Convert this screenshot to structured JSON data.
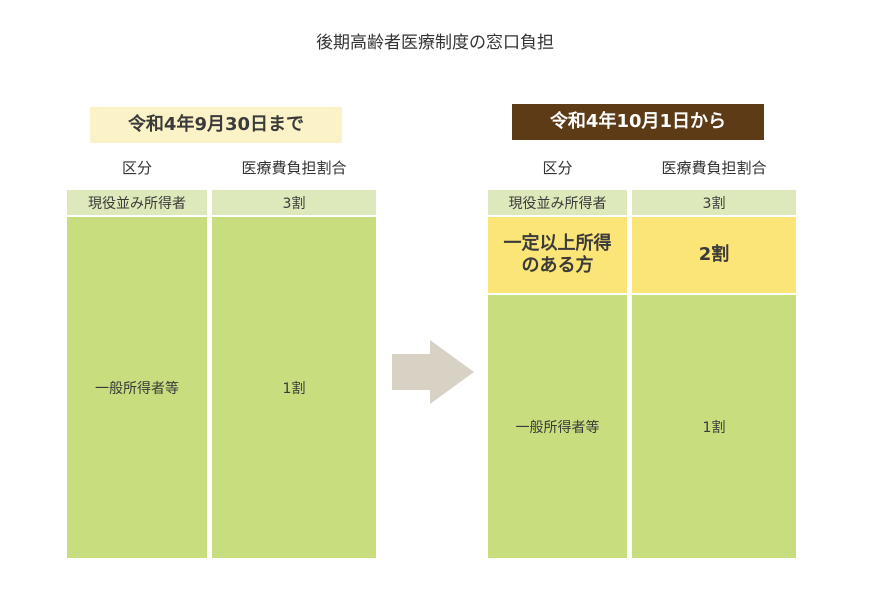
{
  "title": "後期高齢者医療制度の窓口負担",
  "before": {
    "period": "令和4年9月30日まで",
    "header_category": "区分",
    "header_ratio": "医療費負担割合",
    "rows": [
      {
        "category": "現役並み所得者",
        "ratio": "3割"
      },
      {
        "category": "一般所得者等",
        "ratio": "1割"
      }
    ]
  },
  "after": {
    "period": "令和4年10月1日から",
    "header_category": "区分",
    "header_ratio": "医療費負担割合",
    "rows": [
      {
        "category": "現役並み所得者",
        "ratio": "3割"
      },
      {
        "category_line1": "一定以上所得",
        "category_line2": "のある方",
        "ratio": "2割"
      },
      {
        "category": "一般所得者等",
        "ratio": "1割"
      }
    ]
  },
  "colors": {
    "before_period_bg": "#fbf2c8",
    "after_period_bg": "#5c3b16",
    "row_pale_green": "#dde9ba",
    "row_green": "#c7dd7e",
    "row_yellow": "#fbe576",
    "arrow": "#d8d2c4"
  }
}
